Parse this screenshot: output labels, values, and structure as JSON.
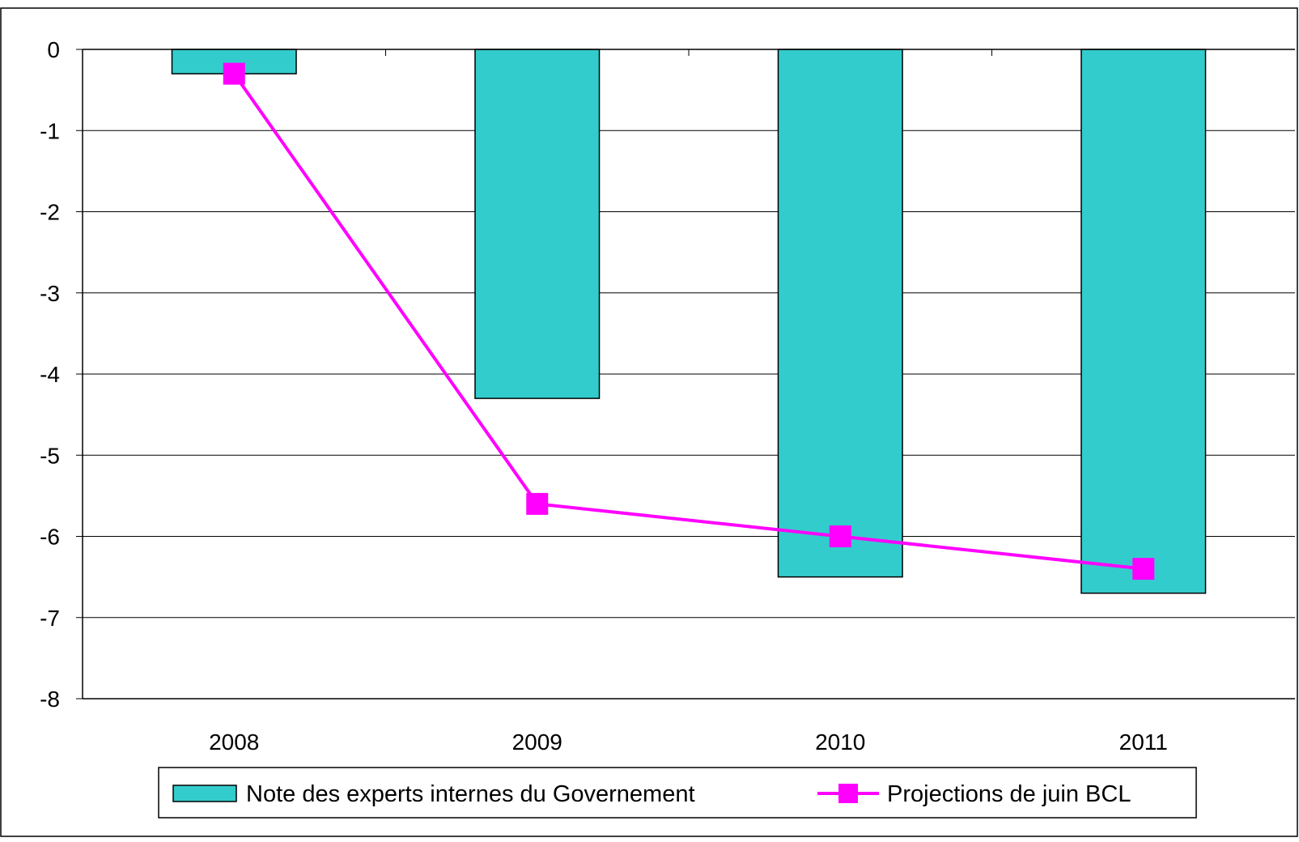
{
  "chart_data": {
    "type": "bar",
    "categories": [
      "2008",
      "2009",
      "2010",
      "2011"
    ],
    "ylim": [
      -8,
      0
    ],
    "yticks": [
      "0",
      "-1",
      "-2",
      "-3",
      "-4",
      "-5",
      "-6",
      "-7",
      "-8"
    ],
    "ytick_values": [
      0,
      -1,
      -2,
      -3,
      -4,
      -5,
      -6,
      -7,
      -8
    ],
    "grid": true,
    "legend_position": "bottom",
    "series": [
      {
        "name": "Note des experts internes du Governement",
        "kind": "bar",
        "color": "#33CCCC",
        "values": [
          -0.3,
          -4.3,
          -6.5,
          -6.7
        ]
      },
      {
        "name": "Projections de juin BCL",
        "kind": "line",
        "color": "#FF00FF",
        "marker": "square",
        "values": [
          -0.3,
          -5.6,
          -6.0,
          -6.4
        ]
      }
    ]
  }
}
